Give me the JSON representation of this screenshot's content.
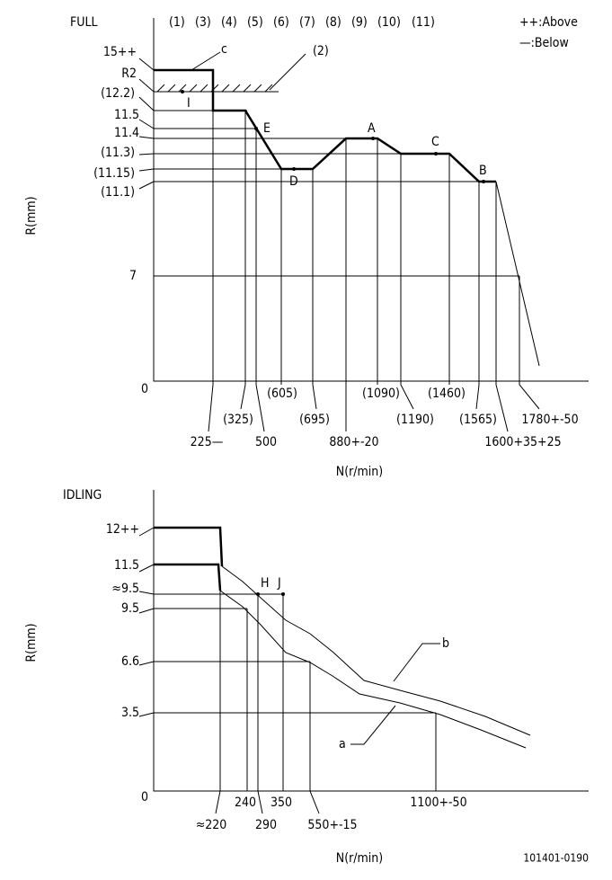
{
  "full": {
    "title": "FULL",
    "header": [
      "(1)",
      "(3)",
      "(4)",
      "(5)",
      "(6)",
      "(7)",
      "(8)",
      "(9)",
      "(10)",
      "(11)"
    ],
    "legend": [
      "++:Above",
      "—:Below"
    ],
    "y_labels": [
      "15++",
      "R2",
      "(12.2)",
      "11.5",
      "11.4",
      "(11.3)",
      "(11.15)",
      "(11.1)",
      "7",
      "0"
    ],
    "y_axis": "R(mm)",
    "points": [
      "c",
      "(2)",
      "I",
      "E",
      "A",
      "C",
      "D",
      "B"
    ],
    "x_labels": [
      "225—",
      "(325)",
      "500",
      "(605)",
      "(695)",
      "880+-20",
      "(1090)",
      "(1190)",
      "(1460)",
      "(1565)",
      "1600+35+25",
      "1780+-50"
    ],
    "x_axis": "N(r/min)"
  },
  "idling": {
    "title": "IDLING",
    "y_labels": [
      "12++",
      "11.5",
      "≈9.5",
      "9.5",
      "6.6",
      "3.5",
      "0"
    ],
    "y_axis": "R(mm)",
    "points": [
      "H",
      "J",
      "a",
      "b"
    ],
    "x_labels": [
      "≈220",
      "240",
      "290",
      "350",
      "550+-15",
      "1100+-50"
    ],
    "x_axis": "N(r/min)"
  },
  "code": "101401-0190"
}
